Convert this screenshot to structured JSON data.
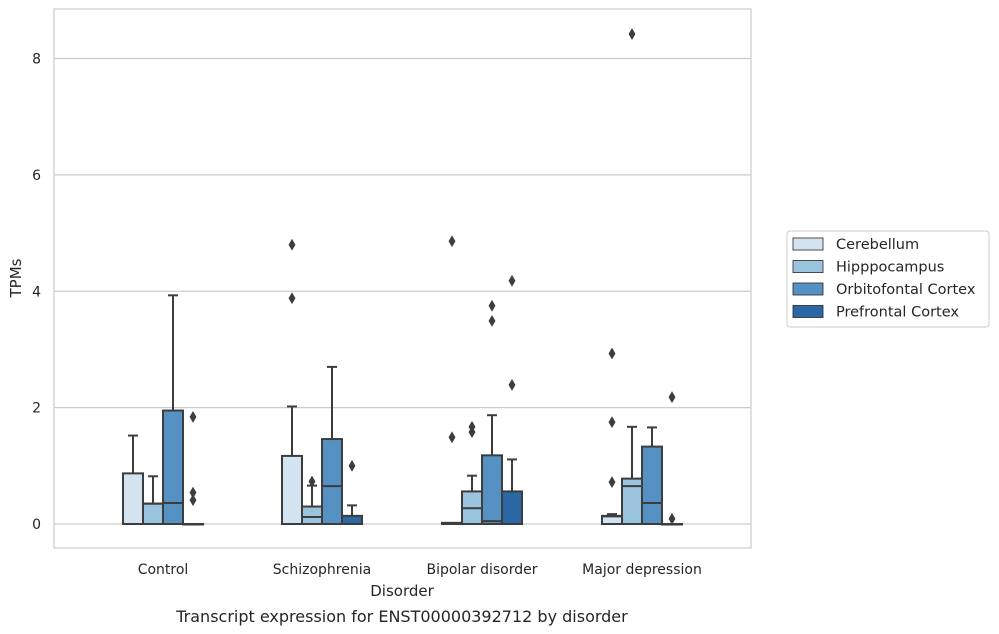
{
  "chart_data": {
    "type": "box",
    "caption": "Transcript expression for ENST00000392712 by disorder",
    "xlabel": "Disorder",
    "ylabel": "TPMs",
    "ylim": [
      -0.4,
      8.85
    ],
    "yticks": [
      0,
      2,
      4,
      6,
      8
    ],
    "grid": "horizontal",
    "legend_position": "right",
    "categories": [
      "Control",
      "Schizophrenia",
      "Bipolar disorder",
      "Major depression"
    ],
    "series": [
      {
        "name": "Cerebellum",
        "color": "#d3e3f0",
        "boxes": [
          {
            "whisker_low": 0,
            "q1": 0,
            "median": 0,
            "q3": 0.87,
            "whisker_high": 1.52,
            "outliers": []
          },
          {
            "whisker_low": 0,
            "q1": 0,
            "median": 0,
            "q3": 1.17,
            "whisker_high": 2.02,
            "outliers": [
              3.88,
              4.8
            ]
          },
          {
            "whisker_low": 0,
            "q1": 0,
            "median": 0,
            "q3": 0.02,
            "whisker_high": 0.02,
            "outliers": [
              1.49,
              4.86
            ]
          },
          {
            "whisker_low": 0,
            "q1": 0,
            "median": 0.13,
            "q3": 0.14,
            "whisker_high": 0.17,
            "outliers": [
              0.72,
              1.75,
              2.93
            ]
          }
        ]
      },
      {
        "name": "Hipppocampus",
        "color": "#9ac4de",
        "boxes": [
          {
            "whisker_low": 0,
            "q1": 0,
            "median": 0.35,
            "q3": 0.35,
            "whisker_high": 0.82,
            "outliers": []
          },
          {
            "whisker_low": 0,
            "q1": 0,
            "median": 0.12,
            "q3": 0.3,
            "whisker_high": 0.66,
            "outliers": [
              0.73
            ]
          },
          {
            "whisker_low": 0,
            "q1": 0,
            "median": 0.27,
            "q3": 0.56,
            "whisker_high": 0.83,
            "outliers": [
              1.58,
              1.67
            ]
          },
          {
            "whisker_low": 0,
            "q1": 0,
            "median": 0.65,
            "q3": 0.78,
            "whisker_high": 1.67,
            "outliers": [
              8.42
            ]
          }
        ]
      },
      {
        "name": "Orbitofontal Cortex",
        "color": "#5592c3",
        "boxes": [
          {
            "whisker_low": 0,
            "q1": 0,
            "median": 0.36,
            "q3": 1.95,
            "whisker_high": 3.93,
            "outliers": []
          },
          {
            "whisker_low": 0,
            "q1": 0,
            "median": 0.65,
            "q3": 1.46,
            "whisker_high": 2.7,
            "outliers": []
          },
          {
            "whisker_low": 0,
            "q1": 0,
            "median": 0.05,
            "q3": 1.18,
            "whisker_high": 1.87,
            "outliers": [
              3.49,
              3.75
            ]
          },
          {
            "whisker_low": 0,
            "q1": 0,
            "median": 0.36,
            "q3": 1.33,
            "whisker_high": 1.66,
            "outliers": []
          }
        ]
      },
      {
        "name": "Prefrontal Cortex",
        "color": "#2b67a5",
        "boxes": [
          {
            "whisker_low": 0,
            "q1": 0,
            "median": 0,
            "q3": 0,
            "whisker_high": 0,
            "outliers": [
              0.41,
              0.54,
              1.84
            ]
          },
          {
            "whisker_low": 0,
            "q1": 0,
            "median": 0,
            "q3": 0.14,
            "whisker_high": 0.32,
            "outliers": [
              1.0
            ]
          },
          {
            "whisker_low": 0,
            "q1": 0,
            "median": 0,
            "q3": 0.56,
            "whisker_high": 1.11,
            "outliers": [
              2.39,
              4.18
            ]
          },
          {
            "whisker_low": 0,
            "q1": 0,
            "median": 0,
            "q3": 0,
            "whisker_high": 0,
            "outliers": [
              0.09,
              2.18
            ]
          }
        ]
      }
    ]
  }
}
